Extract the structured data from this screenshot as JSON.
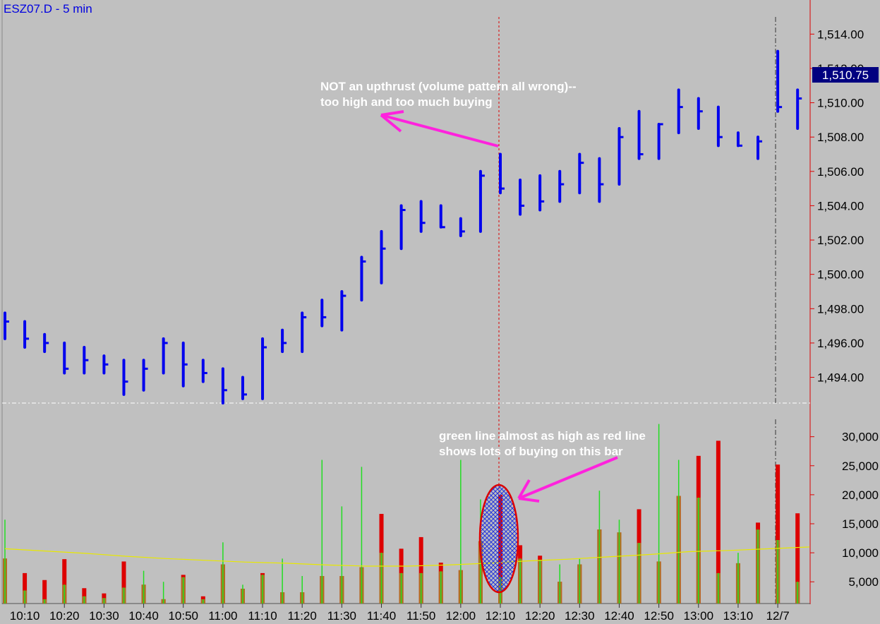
{
  "window": {
    "title": "ESZ07.D - 5 min"
  },
  "colors": {
    "background": "#c0c0c0",
    "price_bar": "#0000ee",
    "volume_total": "#dd0000",
    "volume_buy": "#22dd22",
    "moving_average": "#e8e800",
    "annotation_arrow": "#ff22dd",
    "axis_line": "#dd0000",
    "last_price_bg": "#000080"
  },
  "chart_data": [
    {
      "type": "ohlc",
      "name": "price",
      "ylim": [
        1492.5,
        1515.0
      ],
      "ytick_labels": [
        "1,494.00",
        "1,496.00",
        "1,498.00",
        "1,500.00",
        "1,502.00",
        "1,504.00",
        "1,506.00",
        "1,508.00",
        "1,510.00",
        "1,512.00",
        "1,514.00"
      ],
      "last_price_label": "1,510.75",
      "last_price": 1510.75,
      "x_labels": [
        "10:10",
        "10:20",
        "10:30",
        "10:40",
        "10:50",
        "11:00",
        "11:10",
        "11:20",
        "11:30",
        "11:40",
        "11:50",
        "12:00",
        "12:10",
        "12:20",
        "12:30",
        "12:40",
        "12:50",
        "13:00",
        "13:10",
        "12/7"
      ],
      "bars": [
        {
          "h": 1497.75,
          "l": 1496.25,
          "c": 1497.25
        },
        {
          "h": 1497.25,
          "l": 1495.75,
          "c": 1496.25
        },
        {
          "h": 1496.5,
          "l": 1495.5,
          "c": 1496.0
        },
        {
          "h": 1496.0,
          "l": 1494.25,
          "c": 1494.5
        },
        {
          "h": 1495.75,
          "l": 1494.25,
          "c": 1495.0
        },
        {
          "h": 1495.25,
          "l": 1494.25,
          "c": 1494.75
        },
        {
          "h": 1495.0,
          "l": 1493.0,
          "c": 1493.75
        },
        {
          "h": 1495.0,
          "l": 1493.25,
          "c": 1494.5
        },
        {
          "h": 1496.25,
          "l": 1494.25,
          "c": 1496.0
        },
        {
          "h": 1496.0,
          "l": 1493.5,
          "c": 1494.75
        },
        {
          "h": 1495.0,
          "l": 1493.75,
          "c": 1494.25
        },
        {
          "h": 1494.5,
          "l": 1492.5,
          "c": 1493.25
        },
        {
          "h": 1494.0,
          "l": 1492.75,
          "c": 1493.0
        },
        {
          "h": 1496.25,
          "l": 1492.75,
          "c": 1495.75
        },
        {
          "h": 1496.75,
          "l": 1495.5,
          "c": 1496.0
        },
        {
          "h": 1497.75,
          "l": 1495.5,
          "c": 1497.5
        },
        {
          "h": 1498.5,
          "l": 1497.0,
          "c": 1497.5
        },
        {
          "h": 1499.0,
          "l": 1496.75,
          "c": 1498.75
        },
        {
          "h": 1501.0,
          "l": 1498.5,
          "c": 1500.75
        },
        {
          "h": 1502.5,
          "l": 1499.5,
          "c": 1501.5
        },
        {
          "h": 1504.0,
          "l": 1501.5,
          "c": 1503.75
        },
        {
          "h": 1504.25,
          "l": 1502.5,
          "c": 1503.0
        },
        {
          "h": 1504.0,
          "l": 1502.75,
          "c": 1502.75
        },
        {
          "h": 1503.25,
          "l": 1502.25,
          "c": 1502.5
        },
        {
          "h": 1506.0,
          "l": 1502.5,
          "c": 1505.75
        },
        {
          "h": 1507.0,
          "l": 1504.75,
          "c": 1505.0
        },
        {
          "h": 1505.5,
          "l": 1503.5,
          "c": 1504.0
        },
        {
          "h": 1505.75,
          "l": 1503.75,
          "c": 1504.25
        },
        {
          "h": 1506.0,
          "l": 1504.25,
          "c": 1505.25
        },
        {
          "h": 1507.0,
          "l": 1504.75,
          "c": 1506.5
        },
        {
          "h": 1506.75,
          "l": 1504.25,
          "c": 1505.25
        },
        {
          "h": 1508.5,
          "l": 1505.25,
          "c": 1508.0
        },
        {
          "h": 1509.5,
          "l": 1506.75,
          "c": 1507.0
        },
        {
          "h": 1508.75,
          "l": 1506.75,
          "c": 1508.75
        },
        {
          "h": 1510.75,
          "l": 1508.25,
          "c": 1509.75
        },
        {
          "h": 1510.25,
          "l": 1508.5,
          "c": 1509.5
        },
        {
          "h": 1509.75,
          "l": 1507.5,
          "c": 1508.0
        },
        {
          "h": 1508.25,
          "l": 1507.5,
          "c": 1507.5
        },
        {
          "h": 1508.0,
          "l": 1506.75,
          "c": 1507.75
        },
        {
          "h": 1513.0,
          "l": 1509.5,
          "c": 1509.75
        },
        {
          "h": 1510.75,
          "l": 1508.5,
          "c": 1510.25
        }
      ]
    },
    {
      "type": "bar",
      "name": "volume",
      "ylim": [
        1500,
        33000
      ],
      "ytick_labels": [
        "5,000",
        "10,000",
        "15,000",
        "20,000",
        "25,000",
        "30,000"
      ],
      "total": [
        9000,
        6500,
        5300,
        8900,
        3900,
        3000,
        8500,
        4500,
        2000,
        6200,
        2500,
        8000,
        3800,
        6500,
        3200,
        3200,
        6000,
        6000,
        7500,
        16700,
        10700,
        12700,
        8300,
        7000,
        12000,
        20000,
        11300,
        9500,
        5000,
        8000,
        14000,
        13500,
        17500,
        8500,
        19800,
        26700,
        29300,
        8200,
        15200,
        25200,
        16800
      ],
      "buy": [
        15700,
        3500,
        2000,
        4500,
        2500,
        2200,
        4000,
        6900,
        5000,
        5800,
        2000,
        11800,
        4500,
        6200,
        9000,
        6000,
        26000,
        18000,
        24800,
        10000,
        6500,
        6500,
        6800,
        26000,
        19200,
        5800,
        9000,
        8800,
        8000,
        9000,
        20700,
        15700,
        11700,
        32200,
        26000,
        19500,
        6500,
        10000,
        14000,
        12200,
        5000
      ],
      "moving_average": [
        10700,
        10300,
        9900,
        9400,
        9000,
        8700,
        8400,
        8200,
        7900,
        7700,
        7700,
        7900,
        8200,
        8600,
        8900,
        9300,
        9700,
        10200,
        10400,
        10700,
        11000
      ]
    }
  ],
  "annotations": [
    {
      "text_lines": [
        "NOT an upthrust (volume pattern all wrong)--",
        "too high and too much buying"
      ]
    },
    {
      "text_lines": [
        "green line almost as high as red line",
        "shows lots of buying on this bar"
      ]
    }
  ]
}
